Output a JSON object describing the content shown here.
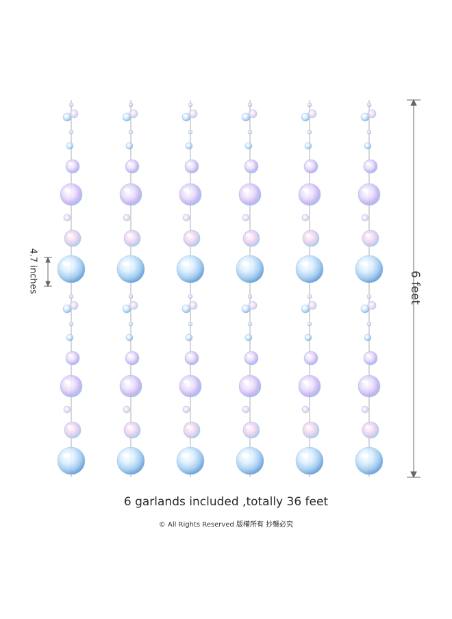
{
  "image": {
    "garland_count": 6,
    "bubble_palette": [
      "#bfe3ff",
      "#d9c8f5",
      "#f2c1e6",
      "#7fb6e8",
      "#4f8fce"
    ],
    "line_color": "#9a9a9a"
  },
  "labels": {
    "height": "6 feet",
    "spacing": "4.7 inches",
    "caption": "6 garlands included ,totally 36 feet",
    "copyright": "© All Rights Reserved 版權所有 抄襲必究"
  }
}
